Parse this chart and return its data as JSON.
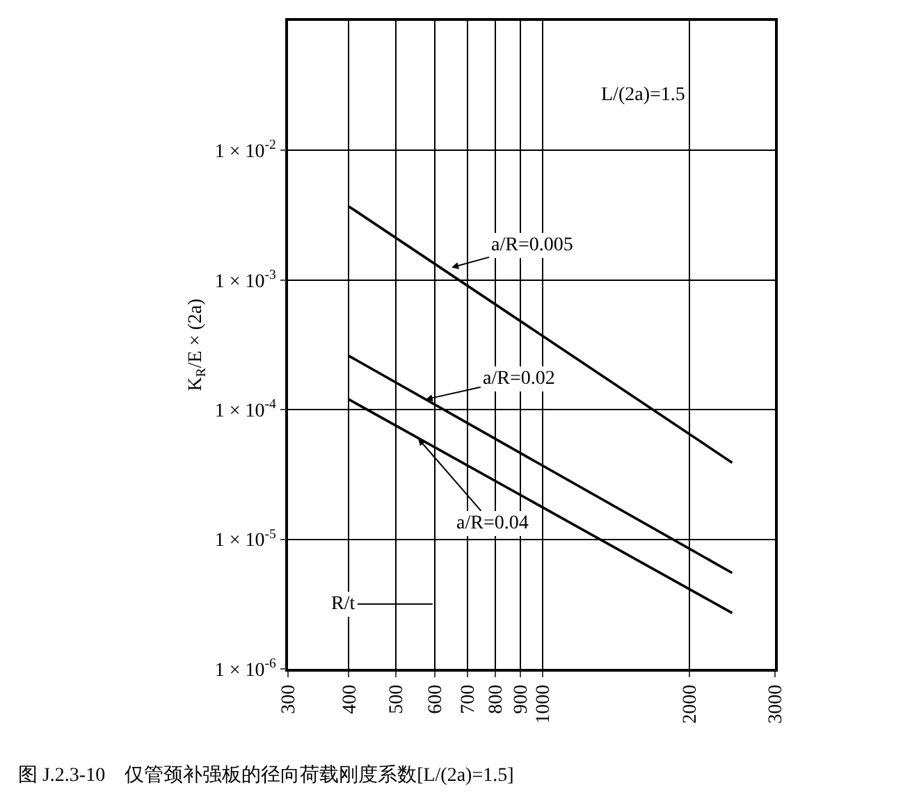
{
  "chart_data": {
    "type": "line",
    "title": "图 J.2.3-10　仅管颈补强板的径向荷载刚度系数[L/(2a)=1.5]",
    "ylabel": "K$_{R}$/E × (2a)",
    "log": "xy",
    "grid": true,
    "marker": "none",
    "line_style": "solid",
    "x": [
      400,
      2450
    ],
    "series": [
      {
        "color": "#000000",
        "values": [
          0.0037,
          3.9e-05
        ]
      },
      {
        "color": "#000000",
        "values": [
          0.00026,
          5.5e-06
        ]
      },
      {
        "color": "#000000",
        "values": [
          0.00012,
          2.7e-06
        ]
      }
    ],
    "xlim": [
      300,
      3000
    ],
    "xticks": [
      300,
      400,
      500,
      600,
      700,
      800,
      900,
      1000,
      2000,
      3000
    ],
    "ylim": [
      1e-06,
      0.1
    ],
    "yticks": [
      {
        "value": 1e-06,
        "label": "1 × 10$^{-6}$"
      },
      {
        "value": 1e-05,
        "label": "1 × 10$^{-5}$"
      },
      {
        "value": 0.0001,
        "label": "1 × 10$^{-4}$"
      },
      {
        "value": 0.001,
        "label": "1 × 10$^{-3}$"
      },
      {
        "value": 0.01,
        "label": "1 × 10$^{-2}$"
      }
    ],
    "annotations": [
      "L/(2a)=1.5",
      {
        "text": "a/R=0.005",
        "x": 650,
        "y": 0.00125
      },
      {
        "text": "a/R=0.02",
        "x": 575,
        "y": 0.00012
      },
      {
        "text": "a/R=0.04",
        "x": 555,
        "y": 6e-05
      },
      "R/t"
    ]
  }
}
